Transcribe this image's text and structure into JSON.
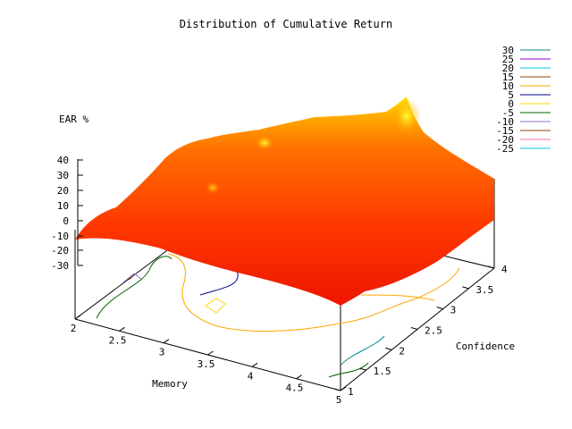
{
  "chart_data": {
    "type": "surface3d",
    "title": "Distribution of Cumulative Return",
    "zlabel": "EAR %",
    "xlabel": "Memory",
    "ylabel": "Confidence",
    "x_ticks": [
      "2",
      "2.5",
      "3",
      "3.5",
      "4",
      "4.5",
      "5"
    ],
    "y_ticks": [
      "1",
      "1.5",
      "2",
      "2.5",
      "3",
      "3.5",
      "4"
    ],
    "z_ticks": [
      "40",
      "30",
      "20",
      "10",
      "0",
      "-10",
      "-20",
      "-30"
    ],
    "xlim": [
      2,
      5
    ],
    "ylim": [
      1,
      4
    ],
    "zlim": [
      -30,
      40
    ],
    "surface_colormap": [
      "#ff0000",
      "#ff8000",
      "#ffff00"
    ],
    "peaks": [
      {
        "memory": 2.0,
        "confidence": 4.0,
        "ear": 31
      },
      {
        "memory": 3.5,
        "confidence": 4.0,
        "ear": 20
      },
      {
        "memory": 2.5,
        "confidence": 3.0,
        "ear": 12
      }
    ],
    "contour_legend": [
      {
        "label": "30",
        "color": "#008b8b"
      },
      {
        "label": "25",
        "color": "#9400d3"
      },
      {
        "label": "20",
        "color": "#00ced1"
      },
      {
        "label": "15",
        "color": "#8b4513"
      },
      {
        "label": "10",
        "color": "#ffa500"
      },
      {
        "label": "5",
        "color": "#00008b"
      },
      {
        "label": "0",
        "color": "#ffd700"
      },
      {
        "label": "-5",
        "color": "#006400"
      },
      {
        "label": "-10",
        "color": "#9370db"
      },
      {
        "label": "-15",
        "color": "#8b4513"
      },
      {
        "label": "-20",
        "color": "#ff69b4"
      },
      {
        "label": "-25",
        "color": "#00ced1"
      }
    ]
  }
}
